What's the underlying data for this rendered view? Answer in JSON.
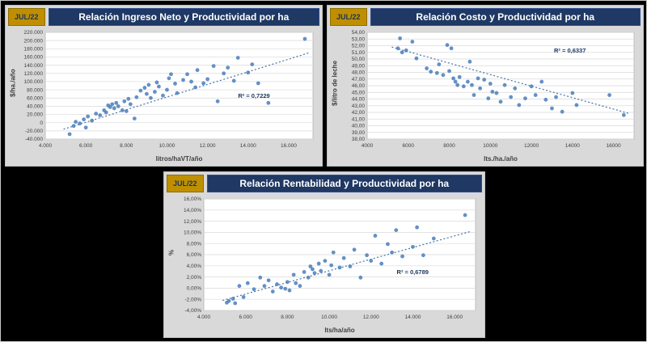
{
  "chart_data": [
    {
      "type": "scatter",
      "badge": "JUL/22",
      "title": "Relación Ingreso Neto y Productividad por ha",
      "xlabel": "litros/haVT/año",
      "ylabel": "$/ha./año",
      "r2": "R² = 0,7229",
      "legend_position": "none",
      "grid": "horizontal",
      "xlim": [
        4000,
        17200
      ],
      "ylim": [
        -40000,
        220000
      ],
      "xtick_vals": [
        4000,
        6000,
        8000,
        10000,
        12000,
        14000,
        16000
      ],
      "xtick_labels": [
        "4.000",
        "6.000",
        "8.000",
        "10.000",
        "12.000",
        "14.000",
        "16.000"
      ],
      "ytick_vals": [
        220000,
        200000,
        180000,
        160000,
        140000,
        120000,
        100000,
        80000,
        60000,
        40000,
        20000,
        0,
        -20000,
        -40000
      ],
      "ytick_labels": [
        "220.000",
        "200.000",
        "180.000",
        "160.000",
        "140.000",
        "120.000",
        "100.000",
        "80.000",
        "60.000",
        "40.000",
        "20.000",
        "0",
        "-20.000",
        "-40.000"
      ],
      "r2_pos": [
        0.72,
        0.56
      ],
      "trend": {
        "x": [
          4900,
          17000
        ],
        "y": [
          -16000,
          170000
        ]
      },
      "points": [
        [
          5200,
          -28000
        ],
        [
          5400,
          -8000
        ],
        [
          5500,
          2000
        ],
        [
          5700,
          -2000
        ],
        [
          5900,
          8000
        ],
        [
          6000,
          -12000
        ],
        [
          6100,
          15000
        ],
        [
          6300,
          5000
        ],
        [
          6500,
          22000
        ],
        [
          6700,
          18000
        ],
        [
          6900,
          30000
        ],
        [
          7000,
          25000
        ],
        [
          7100,
          42000
        ],
        [
          7200,
          38000
        ],
        [
          7300,
          45000
        ],
        [
          7400,
          35000
        ],
        [
          7500,
          48000
        ],
        [
          7600,
          40000
        ],
        [
          7800,
          30000
        ],
        [
          7900,
          52000
        ],
        [
          8000,
          28000
        ],
        [
          8100,
          58000
        ],
        [
          8200,
          45000
        ],
        [
          8400,
          10000
        ],
        [
          8500,
          62000
        ],
        [
          8700,
          78000
        ],
        [
          8900,
          85000
        ],
        [
          9000,
          70000
        ],
        [
          9100,
          92000
        ],
        [
          9200,
          60000
        ],
        [
          9400,
          75000
        ],
        [
          9500,
          98000
        ],
        [
          9600,
          88000
        ],
        [
          9800,
          66000
        ],
        [
          10000,
          80000
        ],
        [
          10100,
          108000
        ],
        [
          10200,
          118000
        ],
        [
          10400,
          95000
        ],
        [
          10500,
          72000
        ],
        [
          10800,
          104000
        ],
        [
          11000,
          118000
        ],
        [
          11200,
          100000
        ],
        [
          11400,
          86000
        ],
        [
          11500,
          128000
        ],
        [
          11800,
          96000
        ],
        [
          12000,
          106000
        ],
        [
          12300,
          138000
        ],
        [
          12500,
          52000
        ],
        [
          12800,
          120000
        ],
        [
          13000,
          134000
        ],
        [
          13300,
          102000
        ],
        [
          13500,
          158000
        ],
        [
          14000,
          122000
        ],
        [
          14200,
          142000
        ],
        [
          14500,
          96000
        ],
        [
          15000,
          48000
        ],
        [
          16800,
          204000
        ]
      ]
    },
    {
      "type": "scatter",
      "badge": "JUL/22",
      "title": "Relación Costo y Productividad por ha",
      "xlabel": "lts./ha./año",
      "ylabel": "$/litro de leche",
      "r2": "R² = 0,6337",
      "legend_position": "none",
      "grid": "horizontal",
      "xlim": [
        4000,
        17000
      ],
      "ylim": [
        38,
        54
      ],
      "xtick_vals": [
        4000,
        6000,
        8000,
        10000,
        12000,
        14000,
        16000
      ],
      "xtick_labels": [
        "4000",
        "6000",
        "8000",
        "10000",
        "12000",
        "14000",
        "16000"
      ],
      "ytick_vals": [
        54,
        53,
        52,
        51,
        50,
        49,
        48,
        47,
        46,
        45,
        44,
        43,
        42,
        41,
        40,
        39,
        38
      ],
      "ytick_labels": [
        "54,00",
        "53,00",
        "52,00",
        "51,00",
        "50,00",
        "49,00",
        "48,00",
        "47,00",
        "46,00",
        "45,00",
        "44,00",
        "43,00",
        "42,00",
        "41,00",
        "40,00",
        "39,00",
        "38,00"
      ],
      "r2_pos": [
        0.7,
        0.14
      ],
      "trend": {
        "x": [
          5200,
          16800
        ],
        "y": [
          51.8,
          41.8
        ]
      },
      "points": [
        [
          5500,
          51.6
        ],
        [
          5600,
          53.1
        ],
        [
          5700,
          51.0
        ],
        [
          5900,
          51.3
        ],
        [
          6200,
          52.6
        ],
        [
          6400,
          50.1
        ],
        [
          6900,
          48.6
        ],
        [
          7100,
          48.1
        ],
        [
          7400,
          47.9
        ],
        [
          7500,
          49.2
        ],
        [
          7700,
          47.6
        ],
        [
          7900,
          52.1
        ],
        [
          8000,
          48.2
        ],
        [
          8100,
          51.6
        ],
        [
          8200,
          47.1
        ],
        [
          8300,
          46.6
        ],
        [
          8400,
          46.1
        ],
        [
          8500,
          47.3
        ],
        [
          8700,
          45.9
        ],
        [
          8900,
          46.6
        ],
        [
          9000,
          49.6
        ],
        [
          9100,
          46.1
        ],
        [
          9200,
          44.6
        ],
        [
          9400,
          47.1
        ],
        [
          9500,
          45.6
        ],
        [
          9700,
          46.9
        ],
        [
          9900,
          44.1
        ],
        [
          10000,
          46.3
        ],
        [
          10100,
          45.1
        ],
        [
          10300,
          44.9
        ],
        [
          10500,
          43.6
        ],
        [
          10700,
          46.1
        ],
        [
          11000,
          44.3
        ],
        [
          11200,
          45.6
        ],
        [
          11400,
          43.1
        ],
        [
          11700,
          44.1
        ],
        [
          12000,
          45.9
        ],
        [
          12200,
          44.6
        ],
        [
          12500,
          46.6
        ],
        [
          12700,
          43.9
        ],
        [
          13000,
          42.6
        ],
        [
          13200,
          44.3
        ],
        [
          13500,
          42.1
        ],
        [
          14000,
          44.9
        ],
        [
          14200,
          43.1
        ],
        [
          15800,
          44.6
        ],
        [
          16500,
          41.6
        ]
      ]
    },
    {
      "type": "scatter",
      "badge": "JUL/22",
      "title": "Relación Rentabilidad y Productividad por ha",
      "xlabel": "lts/ha/año",
      "ylabel": "%",
      "r2": "R² = 0,6789",
      "legend_position": "none",
      "grid": "horizontal",
      "xlim": [
        4000,
        17000
      ],
      "ylim": [
        -4,
        16
      ],
      "xtick_vals": [
        4000,
        6000,
        8000,
        10000,
        12000,
        14000,
        16000
      ],
      "xtick_labels": [
        "4.000",
        "6.000",
        "8.000",
        "10.000",
        "12.000",
        "14.000",
        "16.000"
      ],
      "ytick_vals": [
        16,
        14,
        12,
        10,
        8,
        6,
        4,
        2,
        0,
        -2,
        -4
      ],
      "ytick_labels": [
        "16,00%",
        "14,00%",
        "12,00%",
        "10,00%",
        "8,00%",
        "6,00%",
        "4,00%",
        "2,00%",
        "0,00%",
        "-2,00%",
        "-4,00%"
      ],
      "r2_pos": [
        0.71,
        0.62
      ],
      "trend": {
        "x": [
          4900,
          16800
        ],
        "y": [
          -2.2,
          10.2
        ]
      },
      "points": [
        [
          5100,
          -2.6
        ],
        [
          5200,
          -2.3
        ],
        [
          5400,
          -1.9
        ],
        [
          5500,
          -2.7
        ],
        [
          5700,
          0.4
        ],
        [
          5900,
          -1.6
        ],
        [
          6100,
          0.9
        ],
        [
          6400,
          -0.2
        ],
        [
          6700,
          1.9
        ],
        [
          6900,
          0.4
        ],
        [
          7100,
          1.4
        ],
        [
          7300,
          -0.6
        ],
        [
          7500,
          0.7
        ],
        [
          7700,
          0.1
        ],
        [
          7900,
          -0.1
        ],
        [
          8000,
          1.1
        ],
        [
          8100,
          -0.4
        ],
        [
          8300,
          2.4
        ],
        [
          8400,
          0.9
        ],
        [
          8600,
          0.4
        ],
        [
          8800,
          2.9
        ],
        [
          9000,
          1.9
        ],
        [
          9100,
          3.9
        ],
        [
          9200,
          3.4
        ],
        [
          9300,
          2.7
        ],
        [
          9500,
          4.4
        ],
        [
          9600,
          3.1
        ],
        [
          9800,
          4.9
        ],
        [
          10000,
          2.4
        ],
        [
          10100,
          4.1
        ],
        [
          10200,
          6.4
        ],
        [
          10500,
          3.7
        ],
        [
          10700,
          5.4
        ],
        [
          11000,
          3.9
        ],
        [
          11200,
          6.9
        ],
        [
          11500,
          1.9
        ],
        [
          11800,
          5.9
        ],
        [
          12000,
          4.9
        ],
        [
          12200,
          9.4
        ],
        [
          12500,
          4.4
        ],
        [
          12800,
          7.9
        ],
        [
          13000,
          6.4
        ],
        [
          13200,
          10.4
        ],
        [
          13500,
          5.7
        ],
        [
          14000,
          7.4
        ],
        [
          14200,
          10.9
        ],
        [
          14500,
          5.9
        ],
        [
          15000,
          8.9
        ],
        [
          16500,
          13.1
        ]
      ]
    }
  ],
  "colors": {
    "background": "#000000",
    "panel": "#d9d9d9",
    "title_bar": "#1f3864",
    "badge": "#bf8f00",
    "point": "#4f81bd",
    "trend": "#4472a8",
    "grid": "#d9d9d9",
    "r2_text": "#17375e"
  }
}
